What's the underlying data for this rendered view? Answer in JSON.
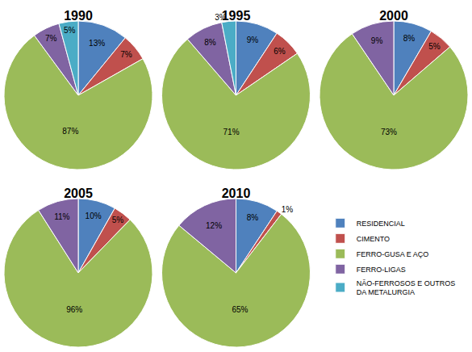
{
  "chart_data": [
    {
      "type": "pie",
      "title": "1990",
      "categories": [
        "RESIDENCIAL",
        "CIMENTO",
        "FERRO-GUSA E AÇO",
        "FERRO-LIGAS",
        "NÃO-FERROSOS E OUTROS DA METALURGIA"
      ],
      "values": [
        13,
        7,
        87,
        7,
        5
      ],
      "value_labels": [
        "13%",
        "7%",
        "87%",
        "7%",
        "5%"
      ],
      "colors": [
        "#4F81BD",
        "#C0504D",
        "#9BBB59",
        "#8064A2",
        "#4BACC6"
      ],
      "data_labels": true,
      "legend": "bottom right"
    },
    {
      "type": "pie",
      "title": "1995",
      "categories": [
        "RESIDENCIAL",
        "CIMENTO",
        "FERRO-GUSA E AÇO",
        "FERRO-LIGAS",
        "NÃO-FERROSOS E OUTROS DA METALURGIA"
      ],
      "values": [
        9,
        6,
        71,
        8,
        3
      ],
      "value_labels": [
        "9%",
        "6%",
        "71%",
        "8%",
        "3%"
      ],
      "colors": [
        "#4F81BD",
        "#C0504D",
        "#9BBB59",
        "#8064A2",
        "#4BACC6"
      ],
      "data_labels": true
    },
    {
      "type": "pie",
      "title": "2000",
      "categories": [
        "RESIDENCIAL",
        "CIMENTO",
        "FERRO-GUSA E AÇO",
        "FERRO-LIGAS"
      ],
      "values": [
        8,
        5,
        73,
        9
      ],
      "value_labels": [
        "8%",
        "5%",
        "73%",
        "9%"
      ],
      "colors": [
        "#4F81BD",
        "#C0504D",
        "#9BBB59",
        "#8064A2"
      ],
      "data_labels": true
    },
    {
      "type": "pie",
      "title": "2005",
      "categories": [
        "RESIDENCIAL",
        "CIMENTO",
        "FERRO-GUSA E AÇO",
        "FERRO-LIGAS"
      ],
      "values": [
        10,
        5,
        96,
        11
      ],
      "value_labels": [
        "10%",
        "5%",
        "96%",
        "11%"
      ],
      "colors": [
        "#4F81BD",
        "#C0504D",
        "#9BBB59",
        "#8064A2"
      ],
      "data_labels": true
    },
    {
      "type": "pie",
      "title": "2010",
      "categories": [
        "RESIDENCIAL",
        "CIMENTO",
        "FERRO-GUSA E AÇO",
        "FERRO-LIGAS"
      ],
      "values": [
        8,
        1,
        65,
        12
      ],
      "value_labels": [
        "8%",
        "1%",
        "65%",
        "12%"
      ],
      "colors": [
        "#4F81BD",
        "#C0504D",
        "#9BBB59",
        "#8064A2"
      ],
      "data_labels": true
    }
  ]
}
